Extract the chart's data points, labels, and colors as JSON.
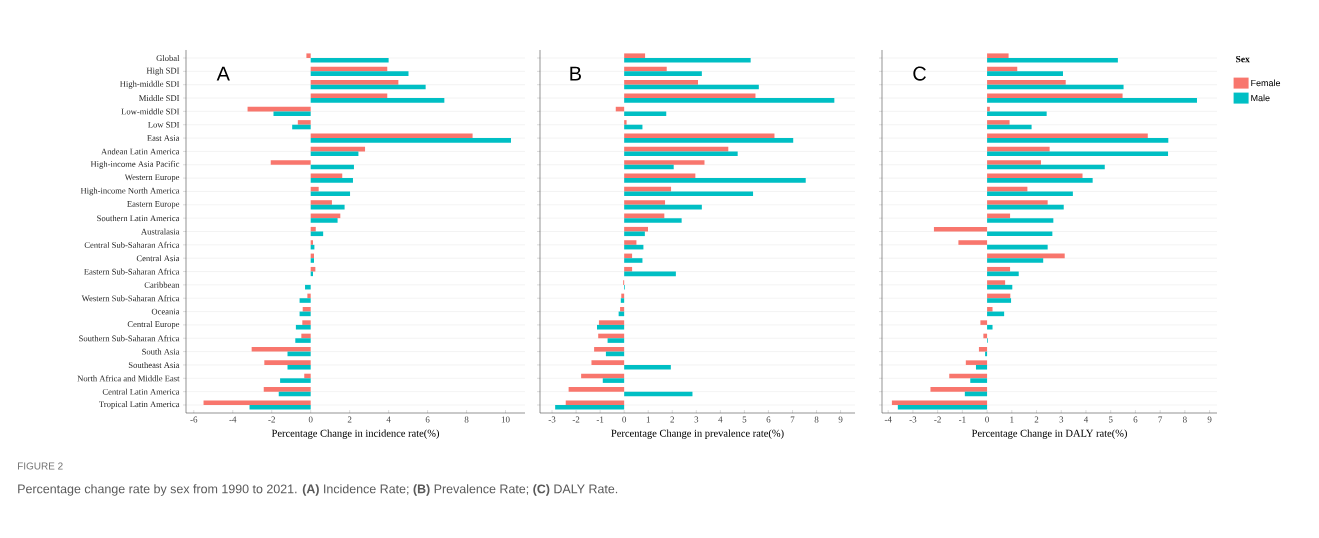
{
  "chart_data": [
    {
      "type": "bar",
      "orientation": "horizontal",
      "title": "A",
      "xlabel": "Percentage Change in incidence rate(%)",
      "categories": [
        "Global",
        "High SDI",
        "High-middle SDI",
        "Middle SDI",
        "Low-middle SDI",
        "Low SDI",
        "East Asia",
        "Andean Latin America",
        "High-income Asia Pacific",
        "Western Europe",
        "High-income North America",
        "Eastern Europe",
        "Southern Latin America",
        "Australasia",
        "Central Sub-Saharan Africa",
        "Central Asia",
        "Eastern Sub-Saharan Africa",
        "Caribbean",
        "Western Sub-Saharan Africa",
        "Oceania",
        "Central Europe",
        "Southern Sub-Saharan Africa",
        "South Asia",
        "Southeast Asia",
        "North Africa and Middle East",
        "Central Latin America",
        "Tropical Latin America"
      ],
      "series": [
        {
          "color": "#f8766d",
          "values": [
            -0.22,
            3.93,
            4.5,
            3.93,
            -3.24,
            -0.66,
            8.31,
            2.79,
            -2.05,
            1.62,
            0.41,
            1.09,
            1.52,
            0.26,
            0.12,
            0.17,
            0.24,
            0.0,
            -0.17,
            -0.41,
            -0.43,
            -0.48,
            -3.03,
            -2.38,
            -0.33,
            -2.41,
            -5.5
          ]
        },
        {
          "color": "#00bfc4",
          "values": [
            4.0,
            5.02,
            5.9,
            6.86,
            -1.91,
            -0.95,
            10.28,
            2.45,
            2.22,
            2.17,
            2.02,
            1.74,
            1.38,
            0.64,
            0.19,
            0.17,
            0.12,
            -0.29,
            -0.57,
            -0.57,
            -0.76,
            -0.79,
            -1.19,
            -1.19,
            -1.57,
            -1.64,
            -3.14
          ]
        }
      ],
      "xlim": [
        -6.4,
        11.0
      ],
      "xticks": [
        -6,
        -4,
        -2,
        0,
        2,
        4,
        6,
        8,
        10
      ],
      "grid": "y",
      "annotations": [
        "FIGURE 2",
        "Percentage change rate by sex from 1990 to 2021. **(A)** Incidence Rate; **(B)** Prevalence Rate; **(C)** DALY Rate."
      ]
    },
    {
      "type": "bar",
      "orientation": "horizontal",
      "title": "B",
      "xlabel": "Percentage Change in prevalence rate(%)",
      "categories": [
        null,
        null,
        null,
        null,
        null,
        null,
        null,
        null,
        null,
        null,
        null,
        null,
        null,
        null,
        null,
        null,
        null,
        null,
        null,
        null,
        null,
        null,
        null,
        null,
        null,
        null,
        null
      ],
      "series": [
        {
          "color": "#f8766d",
          "values": [
            0.87,
            1.77,
            3.07,
            5.46,
            -0.35,
            0.1,
            6.25,
            4.33,
            3.34,
            2.96,
            1.95,
            1.7,
            1.67,
            0.99,
            0.51,
            0.33,
            0.33,
            -0.04,
            -0.12,
            -0.17,
            -1.05,
            -1.08,
            -1.25,
            -1.36,
            -1.79,
            -2.31,
            -2.43
          ]
        },
        {
          "color": "#00bfc4",
          "values": [
            5.26,
            3.23,
            5.6,
            8.74,
            1.75,
            0.76,
            7.03,
            4.72,
            2.06,
            7.55,
            5.36,
            3.23,
            2.39,
            0.86,
            0.8,
            0.76,
            2.15,
            0.03,
            -0.14,
            -0.23,
            -1.13,
            -0.69,
            -0.76,
            1.94,
            -0.89,
            2.84,
            -2.87
          ]
        }
      ],
      "xlim": [
        -3.5,
        9.6
      ],
      "xticks": [
        -3,
        -2,
        -1,
        0,
        1,
        2,
        3,
        4,
        5,
        6,
        7,
        8,
        9
      ],
      "grid": "y",
      "tick_labels": "x"
    },
    {
      "type": "bar",
      "orientation": "horizontal",
      "title": "C",
      "xlabel": "Percentage Change in DALY rate(%)",
      "categories": [
        null,
        null,
        null,
        null,
        null,
        null,
        null,
        null,
        null,
        null,
        null,
        null,
        null,
        null,
        null,
        null,
        null,
        null,
        null,
        null,
        null,
        null,
        null,
        null,
        null,
        null,
        null
      ],
      "series": [
        {
          "name": "Female",
          "color": "#f8766d",
          "values": [
            0.87,
            1.22,
            3.18,
            5.48,
            0.11,
            0.91,
            6.5,
            2.53,
            2.18,
            3.86,
            1.63,
            2.45,
            0.93,
            -2.15,
            -1.16,
            3.14,
            0.93,
            0.73,
            0.94,
            0.22,
            -0.27,
            -0.15,
            -0.33,
            -0.86,
            -1.53,
            -2.29,
            -3.85
          ]
        },
        {
          "name": "Male",
          "color": "#00bfc4",
          "values": [
            5.29,
            3.07,
            5.52,
            8.49,
            2.41,
            1.8,
            7.33,
            7.32,
            4.76,
            4.27,
            3.47,
            3.1,
            2.68,
            2.64,
            2.45,
            2.27,
            1.28,
            1.02,
            0.97,
            0.69,
            0.22,
            0.03,
            -0.08,
            -0.45,
            -0.68,
            -0.9,
            -3.61
          ]
        }
      ],
      "xlim": [
        -4.25,
        9.3
      ],
      "xticks": [
        -4,
        -3,
        -2,
        -1,
        0,
        1,
        2,
        3,
        4,
        5,
        6,
        7,
        8,
        9
      ],
      "grid": "y",
      "tick_labels": "x",
      "legend": "right",
      "legend_title": "Sex"
    }
  ]
}
